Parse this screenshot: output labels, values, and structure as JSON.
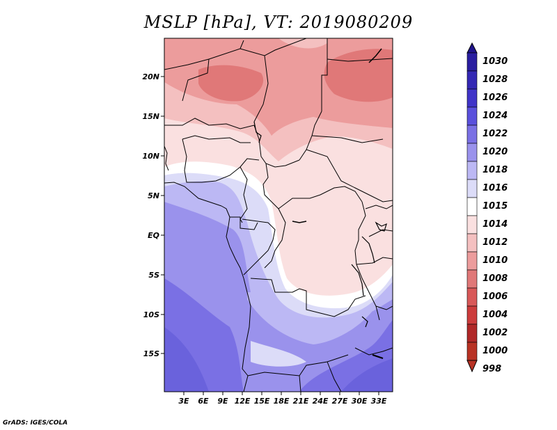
{
  "title": "MSLP [hPa], VT: 2019080209",
  "credit": "GrADS: IGES/COLA",
  "lat_labels": [
    "20N",
    "15N",
    "10N",
    "5N",
    "EQ",
    "5S",
    "10S",
    "15S"
  ],
  "lon_labels": [
    "3E",
    "6E",
    "9E",
    "12E",
    "15E",
    "18E",
    "21E",
    "24E",
    "27E",
    "30E",
    "33E"
  ],
  "legend_levels": [
    "1030",
    "1028",
    "1026",
    "1024",
    "1022",
    "1020",
    "1018",
    "1016",
    "1015",
    "1014",
    "1012",
    "1010",
    "1008",
    "1006",
    "1004",
    "1002",
    "1000",
    "998"
  ],
  "colors": {
    "p1030": "#20148c",
    "p1028": "#2a1ea0",
    "p1026": "#3428b4",
    "p1024": "#4034c8",
    "p1022": "#5a50dc",
    "p1020": "#7a70e4",
    "p1018": "#9a92ec",
    "p1016": "#bcb8f4",
    "p1015": "#dcdcf8",
    "p1014": "#ffffff",
    "p1012": "#fae0e0",
    "p1010": "#f4c0c0",
    "p1008": "#ec9c9c",
    "p1006": "#e07878",
    "p1004": "#d85858",
    "p1002": "#cc3c3c",
    "p1000": "#b02828",
    "p998": "#b83224"
  }
}
